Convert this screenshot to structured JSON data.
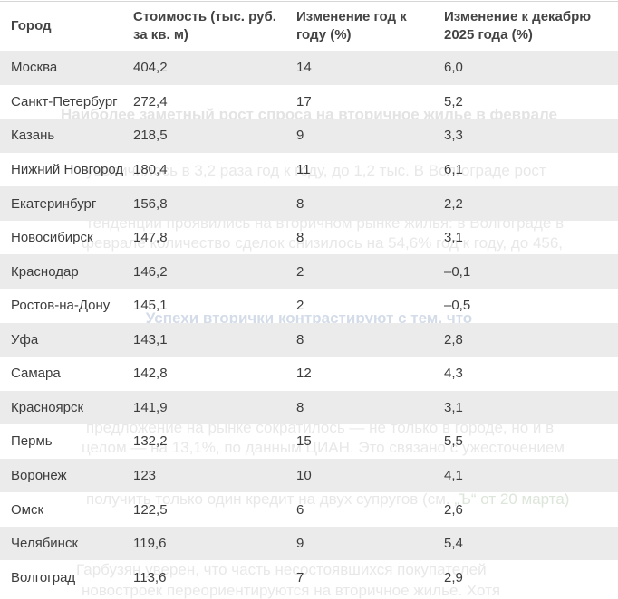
{
  "colors": {
    "row_stripe": "#ebebeb",
    "table_text": "#3d3d3d",
    "header_text": "#444444",
    "top_border": "#d6d6d6",
    "faint_body_text": "#e8e8e8",
    "faint_heading_blue": "#d3dce8",
    "faint_link_green": "#dde6da"
  },
  "table": {
    "header": {
      "city": "Город",
      "price": "Стоимость (тыс. руб. за кв. м)",
      "yoy": "Изменение год к году (%)",
      "dec": "Изменение к декабрю 2025 года (%)"
    },
    "rows": [
      {
        "city": "Москва",
        "price": "404,2",
        "yoy": "14",
        "dec": "6,0"
      },
      {
        "city": "Санкт-Петербург",
        "price": "272,4",
        "yoy": "17",
        "dec": "5,2"
      },
      {
        "city": "Казань",
        "price": "218,5",
        "yoy": "9",
        "dec": "3,3"
      },
      {
        "city": "Нижний Новгород",
        "price": "180,4",
        "yoy": "11",
        "dec": "6,1"
      },
      {
        "city": "Екатеринбург",
        "price": "156,8",
        "yoy": "8",
        "dec": "2,2"
      },
      {
        "city": "Новосибирск",
        "price": "147,8",
        "yoy": "8",
        "dec": "3,1"
      },
      {
        "city": "Краснодар",
        "price": "146,2",
        "yoy": "2",
        "dec": "–0,1"
      },
      {
        "city": "Ростов-на-Дону",
        "price": "145,1",
        "yoy": "2",
        "dec": "–0,5"
      },
      {
        "city": "Уфа",
        "price": "143,1",
        "yoy": "8",
        "dec": "2,8"
      },
      {
        "city": "Самара",
        "price": "142,8",
        "yoy": "12",
        "dec": "4,3"
      },
      {
        "city": "Красноярск",
        "price": "141,9",
        "yoy": "8",
        "dec": "3,1"
      },
      {
        "city": "Пермь",
        "price": "132,2",
        "yoy": "15",
        "dec": "5,5"
      },
      {
        "city": "Воронеж",
        "price": "123",
        "yoy": "10",
        "dec": "4,1"
      },
      {
        "city": "Омск",
        "price": "122,5",
        "yoy": "6",
        "dec": "2,6"
      },
      {
        "city": "Челябинск",
        "price": "119,6",
        "yoy": "9",
        "dec": "5,4"
      },
      {
        "city": "Волгоград",
        "price": "113,6",
        "yoy": "7",
        "dec": "2,9"
      }
    ]
  },
  "chart_data": {
    "type": "table",
    "title": "",
    "columns": [
      "Город",
      "Стоимость (тыс. руб. за кв. м)",
      "Изменение год к году (%)",
      "Изменение к декабрю 2025 года (%)"
    ],
    "rows": [
      [
        "Москва",
        404.2,
        14,
        6.0
      ],
      [
        "Санкт-Петербург",
        272.4,
        17,
        5.2
      ],
      [
        "Казань",
        218.5,
        9,
        3.3
      ],
      [
        "Нижний Новгород",
        180.4,
        11,
        6.1
      ],
      [
        "Екатеринбург",
        156.8,
        8,
        2.2
      ],
      [
        "Новосибирск",
        147.8,
        8,
        3.1
      ],
      [
        "Краснодар",
        146.2,
        2,
        -0.1
      ],
      [
        "Ростов-на-Дону",
        145.1,
        2,
        -0.5
      ],
      [
        "Уфа",
        143.1,
        8,
        2.8
      ],
      [
        "Самара",
        142.8,
        12,
        4.3
      ],
      [
        "Красноярск",
        141.9,
        8,
        3.1
      ],
      [
        "Пермь",
        132.2,
        15,
        5.5
      ],
      [
        "Воронеж",
        123,
        10,
        4.1
      ],
      [
        "Омск",
        122.5,
        6,
        2.6
      ],
      [
        "Челябинск",
        119.6,
        9,
        5.4
      ],
      [
        "Волгоград",
        113.6,
        7,
        2.9
      ]
    ],
    "layout_hints": {
      "striped_rows": true,
      "stripe_starts_first_data_row": true,
      "grid": false
    }
  },
  "background_article": {
    "lines": {
      "l1": "Наиболее заметный рост спроса на вторичное жилье в феврале",
      "l2": "увеличилось в 3,2 раза год к году, до 1,2 тыс. В Волгограде рост",
      "l3": "тенденции проявились на вторичном рынке жилья: в Волгограде в",
      "l4": "феврале количество сделок снизилось на 54,6% год к году, до 456,",
      "l5": "Успехи вторички контрастируют с тем, что",
      "l6": "предложение на рынке сократилось — не только в городе, но и в",
      "l7": "целом — на 13,1%, по данным ЦИАН. Это связано с ужесточением",
      "l8a": "получить только один кредит на двух супругов (см. ",
      "l8b": "„Ъ“ от 20 марта)",
      "l9": "Гарбузян уверен, что часть несостоявшихся покупателей",
      "l10": "новостроек переориентируются на вторичное жилье. Хотя"
    }
  }
}
